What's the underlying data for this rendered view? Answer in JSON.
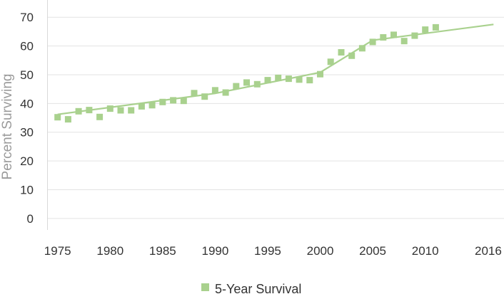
{
  "chart_data": {
    "type": "scatter",
    "title": "",
    "xlabel": "",
    "ylabel": "Percent Surviving",
    "x_ticks": [
      "1975",
      "1980",
      "1985",
      "1990",
      "1995",
      "2000",
      "2005",
      "2010",
      "2016"
    ],
    "y_ticks": [
      "0",
      "10",
      "20",
      "30",
      "40",
      "50",
      "60",
      "70"
    ],
    "xlim": [
      1974,
      2017.5
    ],
    "ylim": [
      -4,
      76
    ],
    "grid": true,
    "legend_position": "bottom",
    "series": [
      {
        "name": "5-Year Survival",
        "color": "#a9d18e",
        "marker": "square",
        "points": [
          [
            1975,
            35.2
          ],
          [
            1976,
            34.5
          ],
          [
            1977,
            37.3
          ],
          [
            1978,
            37.7
          ],
          [
            1979,
            35.3
          ],
          [
            1980,
            38.2
          ],
          [
            1981,
            37.6
          ],
          [
            1982,
            37.6
          ],
          [
            1983,
            39.0
          ],
          [
            1984,
            39.4
          ],
          [
            1985,
            40.5
          ],
          [
            1986,
            41.1
          ],
          [
            1987,
            40.9
          ],
          [
            1988,
            43.6
          ],
          [
            1989,
            42.4
          ],
          [
            1990,
            44.6
          ],
          [
            1991,
            43.8
          ],
          [
            1992,
            46.0
          ],
          [
            1993,
            47.3
          ],
          [
            1994,
            46.7
          ],
          [
            1995,
            48.1
          ],
          [
            1996,
            48.9
          ],
          [
            1997,
            48.6
          ],
          [
            1998,
            48.3
          ],
          [
            1999,
            48.1
          ],
          [
            2000,
            50.2
          ],
          [
            2001,
            54.5
          ],
          [
            2002,
            57.8
          ],
          [
            2003,
            56.6
          ],
          [
            2004,
            59.2
          ],
          [
            2005,
            61.4
          ],
          [
            2006,
            63.0
          ],
          [
            2007,
            63.9
          ],
          [
            2008,
            61.7
          ],
          [
            2009,
            63.6
          ],
          [
            2010,
            65.7
          ],
          [
            2011,
            66.5
          ]
        ]
      }
    ],
    "trend_line": {
      "color": "#a9d18e",
      "points": [
        [
          1975,
          36.2
        ],
        [
          1990,
          43.5
        ],
        [
          2000,
          50.8
        ],
        [
          2005,
          62.0
        ],
        [
          2016.5,
          67.5
        ]
      ]
    }
  }
}
